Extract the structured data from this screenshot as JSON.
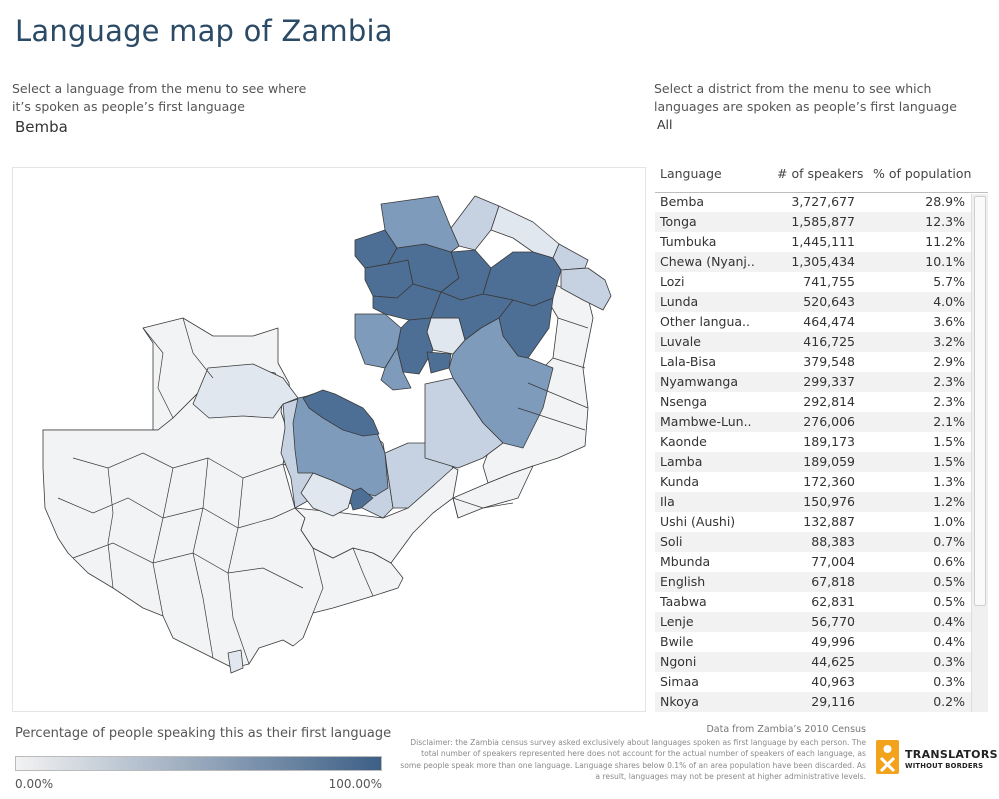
{
  "title": "Language map of Zambia",
  "language_filter": {
    "instruction": "Select a language from the menu to see where it’s spoken as people’s first language",
    "selected": "Bemba"
  },
  "district_filter": {
    "instruction": "Select a district from the menu to see which languages are spoken as people’s first language",
    "selected": "All"
  },
  "table": {
    "headers": {
      "language": "Language",
      "speakers": "# of speakers",
      "percent": "% of population"
    },
    "rows": [
      {
        "language": "Bemba",
        "speakers": "3,727,677",
        "percent": "28.9%"
      },
      {
        "language": "Tonga",
        "speakers": "1,585,877",
        "percent": "12.3%"
      },
      {
        "language": "Tumbuka",
        "speakers": "1,445,111",
        "percent": "11.2%"
      },
      {
        "language": "Chewa (Nyanj..",
        "speakers": "1,305,434",
        "percent": "10.1%"
      },
      {
        "language": "Lozi",
        "speakers": "741,755",
        "percent": "5.7%"
      },
      {
        "language": "Lunda",
        "speakers": "520,643",
        "percent": "4.0%"
      },
      {
        "language": "Other langua..",
        "speakers": "464,474",
        "percent": "3.6%"
      },
      {
        "language": "Luvale",
        "speakers": "416,725",
        "percent": "3.2%"
      },
      {
        "language": "Lala-Bisa",
        "speakers": "379,548",
        "percent": "2.9%"
      },
      {
        "language": "Nyamwanga",
        "speakers": "299,337",
        "percent": "2.3%"
      },
      {
        "language": "Nsenga",
        "speakers": "292,814",
        "percent": "2.3%"
      },
      {
        "language": "Mambwe-Lun..",
        "speakers": "276,006",
        "percent": "2.1%"
      },
      {
        "language": "Kaonde",
        "speakers": "189,173",
        "percent": "1.5%"
      },
      {
        "language": "Lamba",
        "speakers": "189,059",
        "percent": "1.5%"
      },
      {
        "language": "Kunda",
        "speakers": "172,360",
        "percent": "1.3%"
      },
      {
        "language": "Ila",
        "speakers": "150,976",
        "percent": "1.2%"
      },
      {
        "language": "Ushi (Aushi)",
        "speakers": "132,887",
        "percent": "1.0%"
      },
      {
        "language": "Soli",
        "speakers": "88,383",
        "percent": "0.7%"
      },
      {
        "language": "Mbunda",
        "speakers": "77,004",
        "percent": "0.6%"
      },
      {
        "language": "English",
        "speakers": "67,818",
        "percent": "0.5%"
      },
      {
        "language": "Taabwa",
        "speakers": "62,831",
        "percent": "0.5%"
      },
      {
        "language": "Lenje",
        "speakers": "56,770",
        "percent": "0.4%"
      },
      {
        "language": "Bwile",
        "speakers": "49,996",
        "percent": "0.4%"
      },
      {
        "language": "Ngoni",
        "speakers": "44,625",
        "percent": "0.3%"
      },
      {
        "language": "Simaa",
        "speakers": "40,963",
        "percent": "0.3%"
      },
      {
        "language": "Nkoya",
        "speakers": "29,116",
        "percent": "0.2%"
      }
    ]
  },
  "legend": {
    "title": "Percentage of people speaking this as their first language",
    "min_label": "0.00%",
    "max_label": "100.00%",
    "min_color": "#f2f2f2",
    "max_color": "#3d5f86"
  },
  "source": "Data from Zambia’s 2010 Census",
  "disclaimer": "Disclaimer: the Zambia census survey asked exclusively about languages spoken as first language by each person. The total number of speakers represented here does not account for the actual number of speakers of each language, as some people speak more than one language. Language shares below 0.1% of an area population have been discarded. As a result, languages may not be present at higher administrative levels.",
  "logo": {
    "line1": "TRANSLATORS",
    "line2": "WITHOUT BORDERS",
    "color": "#f3a21c"
  },
  "colors": {
    "title": "#2b4a66",
    "map_dark": "#4e6f95",
    "map_mid": "#7f9bbb",
    "map_light": "#c6d2e1",
    "map_pale": "#e1e7ef",
    "map_empty": "#f2f3f5"
  }
}
